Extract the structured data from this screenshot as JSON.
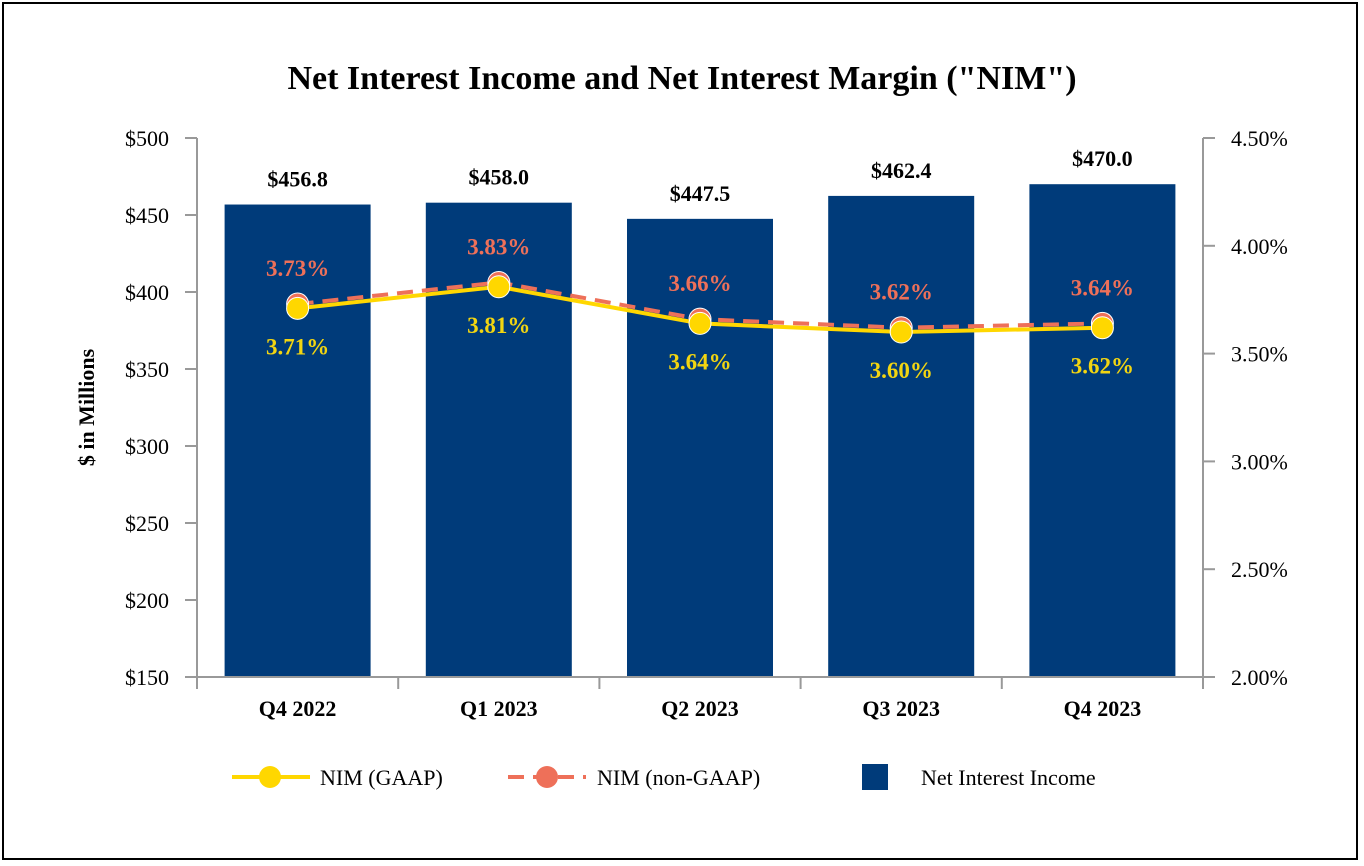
{
  "chart_data": {
    "type": "bar+line",
    "title": "Net Interest Income and Net Interest Margin (\"NIM\")",
    "ylabel": "$ in Millions",
    "y_left_ticks": [
      "$150",
      "$200",
      "$250",
      "$300",
      "$350",
      "$400",
      "$450",
      "$500"
    ],
    "y_left_range": [
      150,
      500
    ],
    "y_right_ticks": [
      "2.00%",
      "2.50%",
      "3.00%",
      "3.50%",
      "4.00%",
      "4.50%"
    ],
    "y_right_range": [
      2.0,
      4.5
    ],
    "categories": [
      "Q4 2022",
      "Q1 2023",
      "Q2 2023",
      "Q3 2023",
      "Q4 2023"
    ],
    "series": [
      {
        "name": "Net Interest Income",
        "type": "bar",
        "axis": "left",
        "color": "#003B7A",
        "values": [
          456.8,
          458.0,
          447.5,
          462.4,
          470.0
        ],
        "labels": [
          "$456.8",
          "$458.0",
          "$447.5",
          "$462.4",
          "$470.0"
        ]
      },
      {
        "name": "NIM (GAAP)",
        "type": "line",
        "axis": "right",
        "color": "#FFD700",
        "label_color": "#F2D511",
        "values": [
          3.71,
          3.81,
          3.64,
          3.6,
          3.62
        ],
        "labels": [
          "3.71%",
          "3.81%",
          "3.64%",
          "3.60%",
          "3.62%"
        ]
      },
      {
        "name": "NIM (non-GAAP)",
        "type": "line",
        "axis": "right",
        "dashed": true,
        "color": "#EE7059",
        "values": [
          3.73,
          3.83,
          3.66,
          3.62,
          3.64
        ],
        "labels": [
          "3.73%",
          "3.83%",
          "3.66%",
          "3.62%",
          "3.64%"
        ]
      }
    ],
    "legend": [
      "NIM (GAAP)",
      "NIM (non-GAAP)",
      "Net Interest Income"
    ],
    "legend_position": "bottom"
  }
}
